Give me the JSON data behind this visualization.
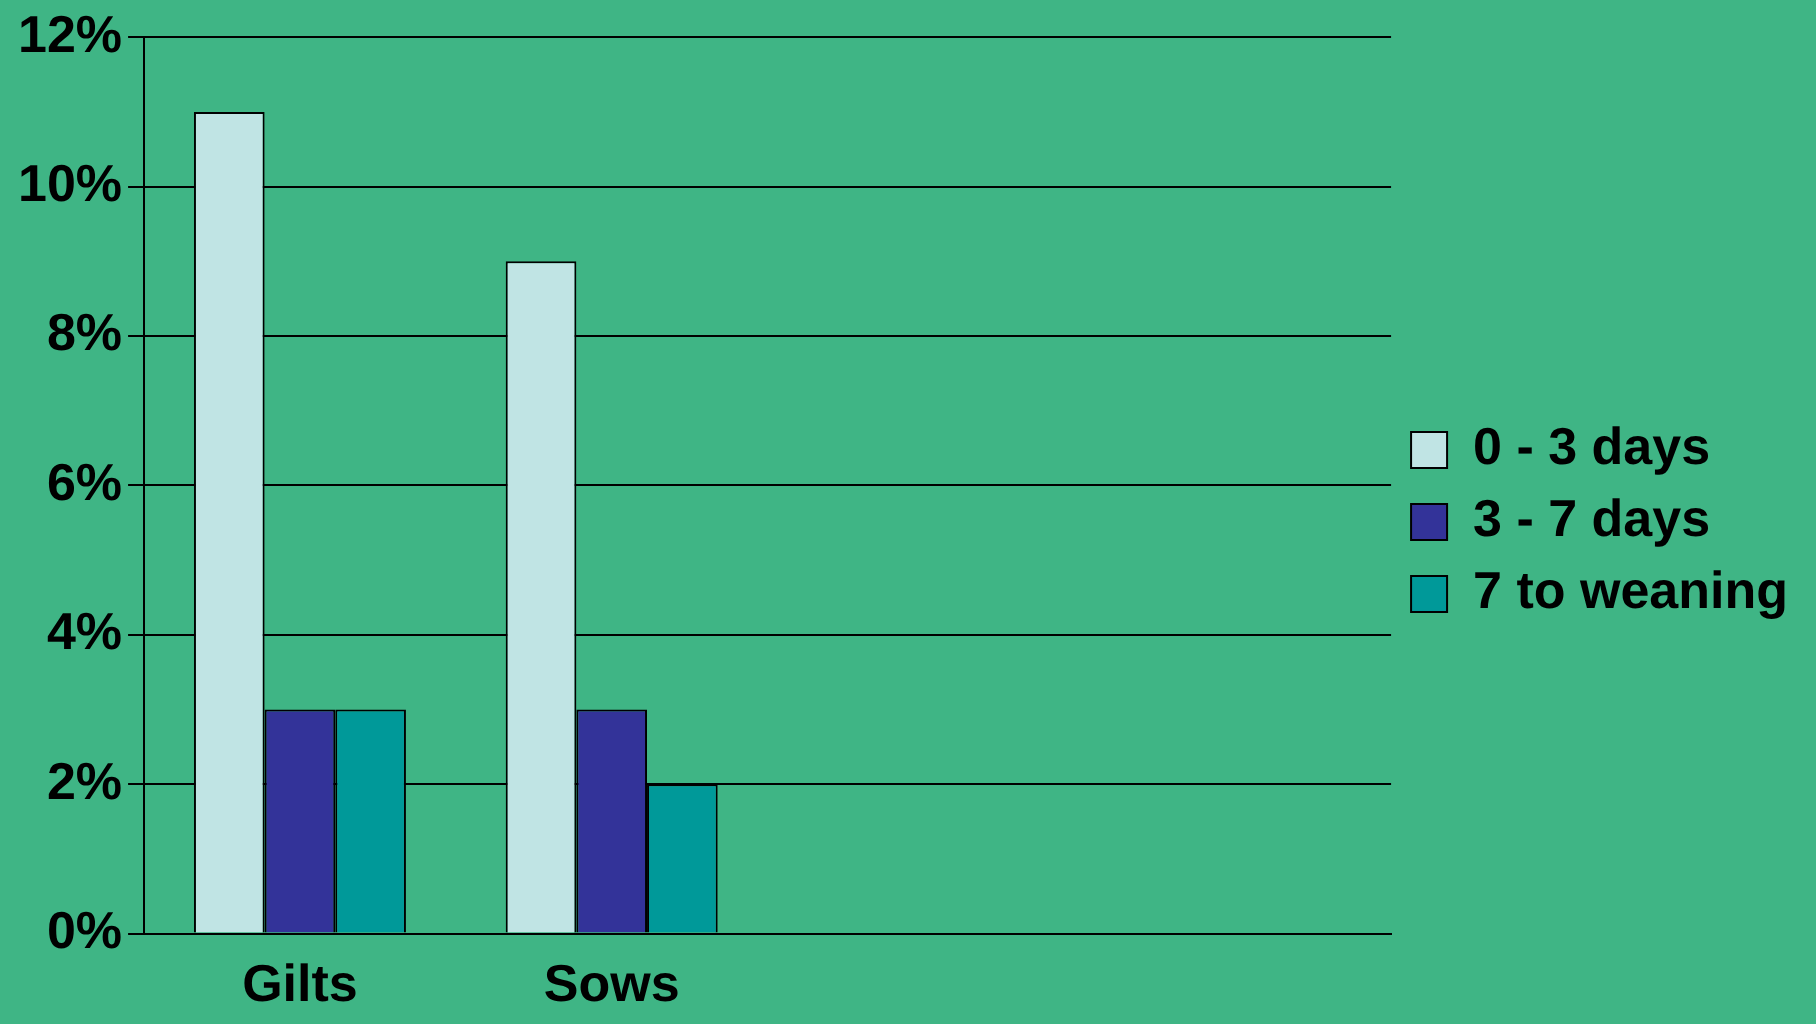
{
  "chart_data": {
    "type": "bar",
    "categories": [
      "Gilts",
      "Sows",
      null,
      null
    ],
    "series": [
      {
        "name": "0 - 3 days",
        "color": "#c0e4e4",
        "values": [
          11,
          9,
          null,
          null
        ]
      },
      {
        "name": "3 - 7 days",
        "color": "#333399",
        "values": [
          3,
          3,
          null,
          null
        ]
      },
      {
        "name": "7 to weaning",
        "color": "#009999",
        "values": [
          3,
          2,
          null,
          null
        ]
      }
    ],
    "ylim": [
      0,
      12
    ],
    "yticks": [
      {
        "value": 0,
        "label": "0%"
      },
      {
        "value": 2,
        "label": "2%"
      },
      {
        "value": 4,
        "label": "4%"
      },
      {
        "value": 6,
        "label": "6%"
      },
      {
        "value": 8,
        "label": "8%"
      },
      {
        "value": 10,
        "label": "10%"
      },
      {
        "value": 12,
        "label": "12%"
      }
    ],
    "grid": "y",
    "legend": "right"
  }
}
